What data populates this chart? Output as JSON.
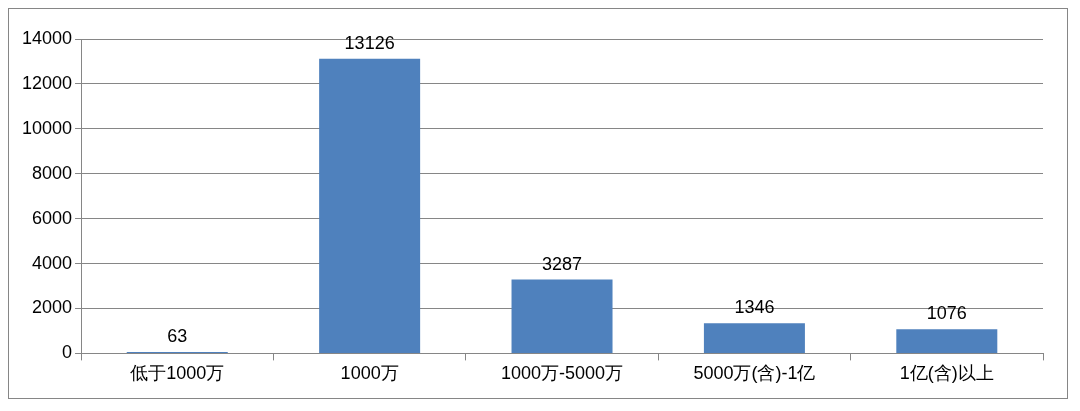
{
  "chart_data": {
    "type": "bar",
    "categories": [
      "低于1000万",
      "1000万",
      "1000万-5000万",
      "5000万(含)-1亿",
      "1亿(含)以上"
    ],
    "values": [
      63,
      13126,
      3287,
      1346,
      1076
    ],
    "color": "#4f81bd",
    "ylim": [
      0,
      14000
    ],
    "yticks": [
      0,
      2000,
      4000,
      6000,
      8000,
      10000,
      12000,
      14000
    ],
    "grid": "y",
    "legend": false,
    "data_labels": true
  }
}
